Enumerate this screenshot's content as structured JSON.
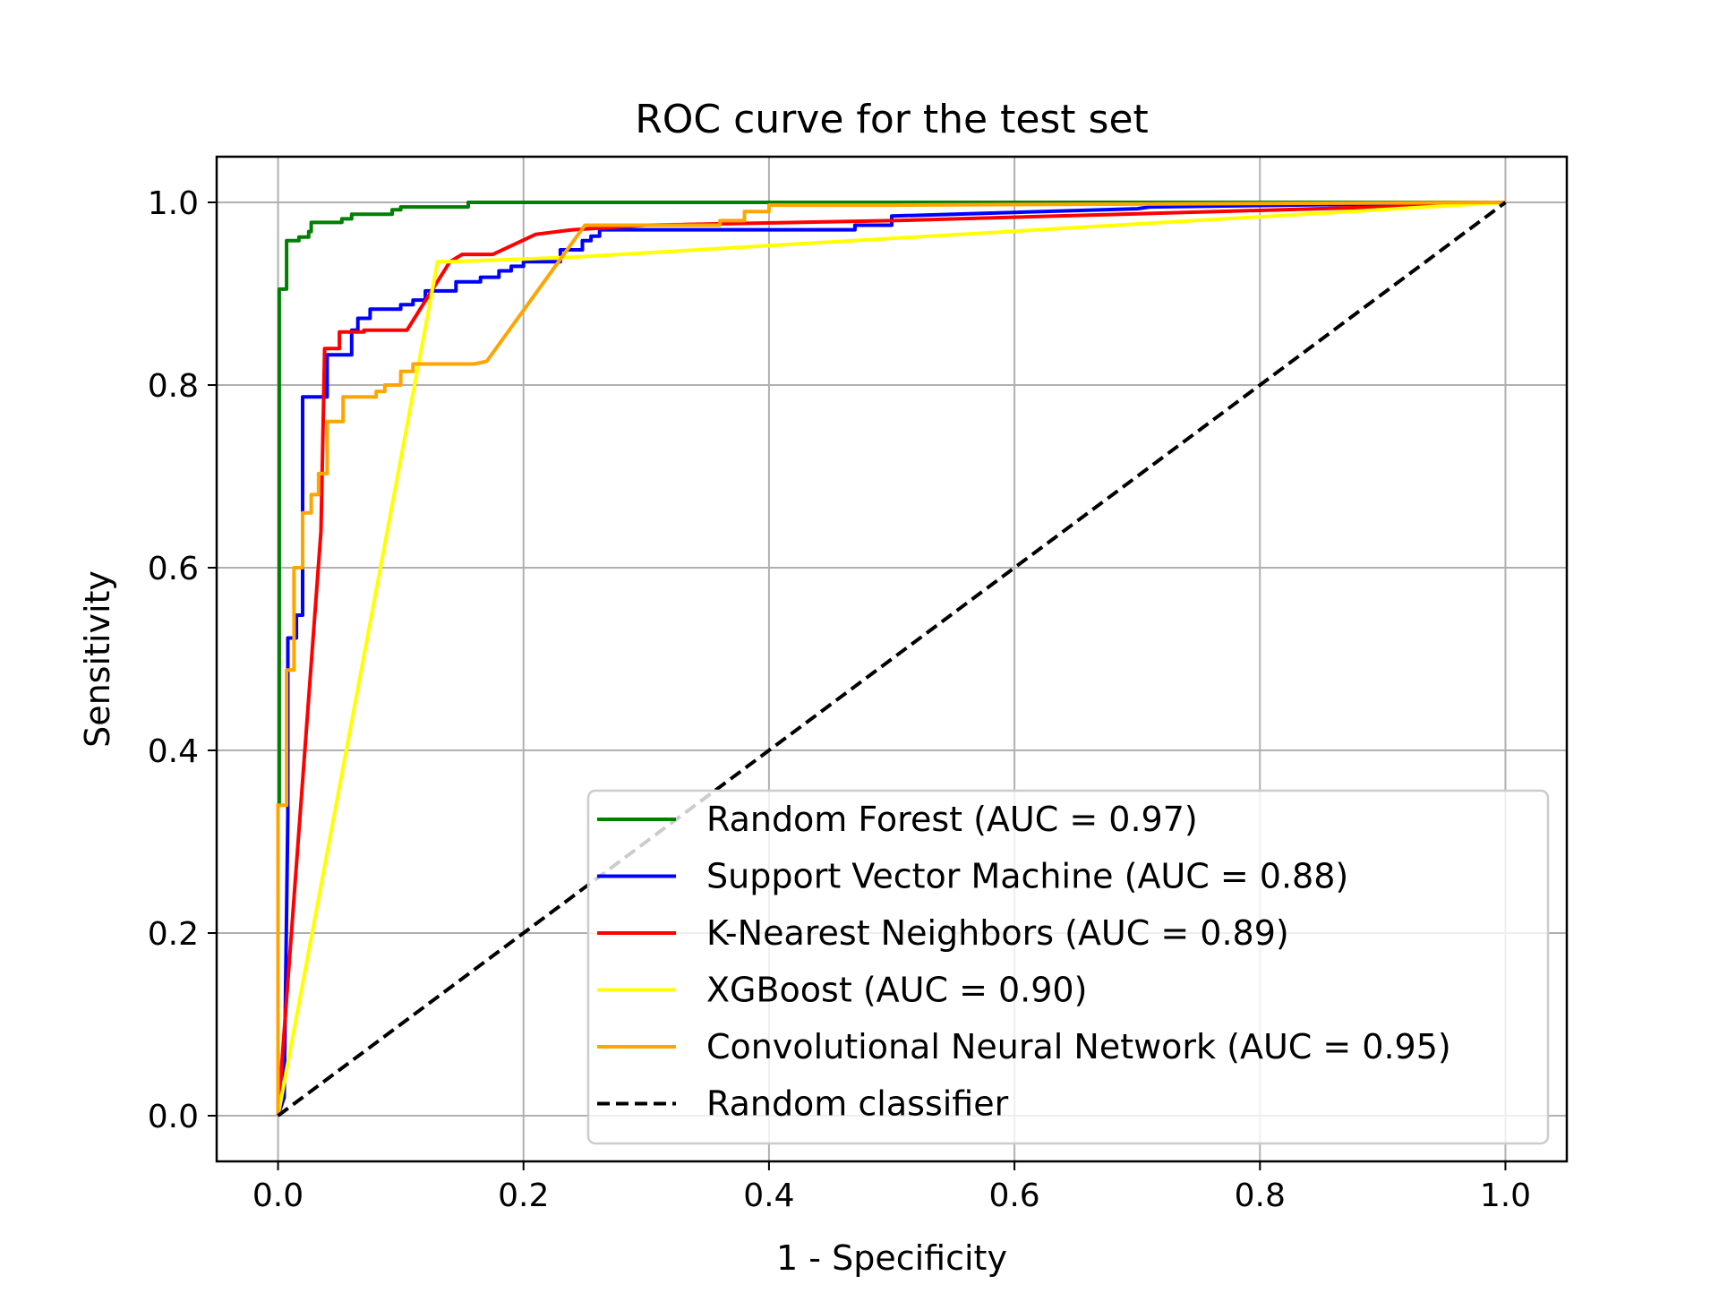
{
  "chart_data": {
    "type": "line",
    "title": "ROC curve for the test set",
    "xlabel": "1 - Specificity",
    "ylabel": "Sensitivity",
    "xlim": [
      -0.05,
      1.05
    ],
    "ylim": [
      -0.05,
      1.05
    ],
    "xticks": [
      0.0,
      0.2,
      0.4,
      0.6,
      0.8,
      1.0
    ],
    "xtick_labels": [
      "0.0",
      "0.2",
      "0.4",
      "0.6",
      "0.8",
      "1.0"
    ],
    "yticks": [
      0.0,
      0.2,
      0.4,
      0.6,
      0.8,
      1.0
    ],
    "ytick_labels": [
      "0.0",
      "0.2",
      "0.4",
      "0.6",
      "0.8",
      "1.0"
    ],
    "grid": true,
    "legend_position": "lower-right",
    "series": [
      {
        "name": "Random Forest (AUC = 0.97)",
        "color": "#008000",
        "dash": "solid",
        "points": [
          [
            0,
            0
          ],
          [
            0,
            0.34
          ],
          [
            0.001,
            0.34
          ],
          [
            0.001,
            0.905
          ],
          [
            0.007,
            0.905
          ],
          [
            0.007,
            0.958
          ],
          [
            0.017,
            0.958
          ],
          [
            0.017,
            0.962
          ],
          [
            0.025,
            0.962
          ],
          [
            0.025,
            0.968
          ],
          [
            0.027,
            0.968
          ],
          [
            0.027,
            0.978
          ],
          [
            0.052,
            0.978
          ],
          [
            0.052,
            0.982
          ],
          [
            0.06,
            0.982
          ],
          [
            0.06,
            0.987
          ],
          [
            0.093,
            0.987
          ],
          [
            0.093,
            0.992
          ],
          [
            0.1,
            0.992
          ],
          [
            0.1,
            0.995
          ],
          [
            0.155,
            0.995
          ],
          [
            0.155,
            1.0
          ],
          [
            0.56,
            1.0
          ],
          [
            1.0,
            1.0
          ]
        ]
      },
      {
        "name": "Support Vector Machine (AUC = 0.88)",
        "color": "#0000ff",
        "dash": "solid",
        "points": [
          [
            0,
            0
          ],
          [
            0.005,
            0.02
          ],
          [
            0.008,
            0.33
          ],
          [
            0.008,
            0.523
          ],
          [
            0.015,
            0.523
          ],
          [
            0.015,
            0.548
          ],
          [
            0.02,
            0.548
          ],
          [
            0.02,
            0.787
          ],
          [
            0.04,
            0.787
          ],
          [
            0.04,
            0.833
          ],
          [
            0.06,
            0.833
          ],
          [
            0.06,
            0.86
          ],
          [
            0.065,
            0.86
          ],
          [
            0.065,
            0.873
          ],
          [
            0.075,
            0.873
          ],
          [
            0.075,
            0.883
          ],
          [
            0.1,
            0.883
          ],
          [
            0.1,
            0.888
          ],
          [
            0.11,
            0.888
          ],
          [
            0.11,
            0.893
          ],
          [
            0.12,
            0.893
          ],
          [
            0.12,
            0.903
          ],
          [
            0.145,
            0.903
          ],
          [
            0.145,
            0.913
          ],
          [
            0.165,
            0.913
          ],
          [
            0.165,
            0.918
          ],
          [
            0.18,
            0.918
          ],
          [
            0.18,
            0.925
          ],
          [
            0.19,
            0.925
          ],
          [
            0.19,
            0.93
          ],
          [
            0.2,
            0.93
          ],
          [
            0.2,
            0.935
          ],
          [
            0.23,
            0.935
          ],
          [
            0.23,
            0.948
          ],
          [
            0.248,
            0.948
          ],
          [
            0.248,
            0.958
          ],
          [
            0.255,
            0.958
          ],
          [
            0.255,
            0.963
          ],
          [
            0.262,
            0.963
          ],
          [
            0.262,
            0.97
          ],
          [
            0.47,
            0.97
          ],
          [
            0.47,
            0.975
          ],
          [
            0.5,
            0.975
          ],
          [
            0.5,
            0.985
          ],
          [
            0.7,
            0.993
          ],
          [
            0.71,
            0.995
          ],
          [
            1.0,
            1.0
          ]
        ]
      },
      {
        "name": "K-Nearest Neighbors (AUC = 0.89)",
        "color": "#ff0000",
        "dash": "solid",
        "points": [
          [
            0,
            0
          ],
          [
            0.035,
            0.64
          ],
          [
            0.038,
            0.84
          ],
          [
            0.05,
            0.84
          ],
          [
            0.05,
            0.858
          ],
          [
            0.07,
            0.858
          ],
          [
            0.07,
            0.86
          ],
          [
            0.105,
            0.86
          ],
          [
            0.14,
            0.935
          ],
          [
            0.15,
            0.943
          ],
          [
            0.175,
            0.943
          ],
          [
            0.21,
            0.965
          ],
          [
            0.24,
            0.97
          ],
          [
            0.3,
            0.975
          ],
          [
            0.5,
            0.98
          ],
          [
            0.9,
            0.995
          ],
          [
            1.0,
            1.0
          ]
        ]
      },
      {
        "name": "XGBoost (AUC = 0.90)",
        "color": "#ffff00",
        "dash": "solid",
        "points": [
          [
            0,
            0
          ],
          [
            0.13,
            0.935
          ],
          [
            0.14,
            0.935
          ],
          [
            0.24,
            0.94
          ],
          [
            1.0,
            1.0
          ]
        ]
      },
      {
        "name": "Convolutional Neural Network (AUC = 0.95)",
        "color": "#ffa500",
        "dash": "solid",
        "points": [
          [
            0,
            0
          ],
          [
            0,
            0.34
          ],
          [
            0.007,
            0.34
          ],
          [
            0.007,
            0.488
          ],
          [
            0.013,
            0.488
          ],
          [
            0.013,
            0.6
          ],
          [
            0.02,
            0.6
          ],
          [
            0.02,
            0.66
          ],
          [
            0.027,
            0.66
          ],
          [
            0.027,
            0.68
          ],
          [
            0.033,
            0.68
          ],
          [
            0.033,
            0.703
          ],
          [
            0.04,
            0.703
          ],
          [
            0.04,
            0.76
          ],
          [
            0.053,
            0.76
          ],
          [
            0.053,
            0.787
          ],
          [
            0.08,
            0.787
          ],
          [
            0.08,
            0.793
          ],
          [
            0.087,
            0.793
          ],
          [
            0.087,
            0.8
          ],
          [
            0.1,
            0.8
          ],
          [
            0.1,
            0.815
          ],
          [
            0.11,
            0.815
          ],
          [
            0.11,
            0.823
          ],
          [
            0.16,
            0.823
          ],
          [
            0.17,
            0.826
          ],
          [
            0.25,
            0.975
          ],
          [
            0.36,
            0.975
          ],
          [
            0.36,
            0.98
          ],
          [
            0.38,
            0.98
          ],
          [
            0.38,
            0.99
          ],
          [
            0.4,
            0.99
          ],
          [
            0.4,
            0.997
          ],
          [
            0.5,
            0.997
          ],
          [
            1.0,
            1.0
          ]
        ]
      },
      {
        "name": "Random classifier",
        "color": "#000000",
        "dash": "dashed",
        "points": [
          [
            0,
            0
          ],
          [
            1,
            1
          ]
        ]
      }
    ]
  }
}
